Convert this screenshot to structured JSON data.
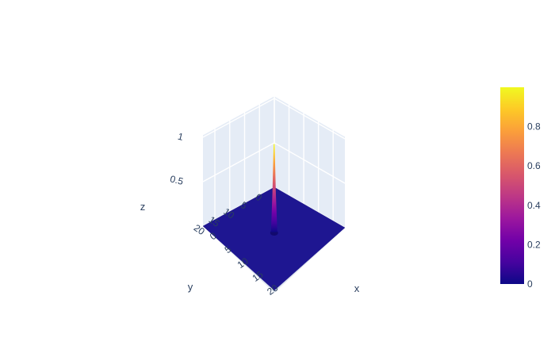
{
  "chart_data": {
    "type": "surface",
    "title": "",
    "colorscale": "plasma",
    "colorscale_stops": [
      "#0d0887",
      "#46039f",
      "#7201a8",
      "#9c179e",
      "#bd3786",
      "#d8576b",
      "#ed7953",
      "#fb9f3a",
      "#fdca26",
      "#f0f921"
    ],
    "surface_fill": "#1e1691",
    "x": {
      "label": "x",
      "range": [
        0,
        24
      ],
      "ticks": [
        0,
        5,
        10,
        15,
        20
      ],
      "tick_labels": [
        "0",
        "5",
        "10",
        "15",
        "20"
      ]
    },
    "y": {
      "label": "y",
      "range": [
        0,
        24
      ],
      "ticks": [
        0,
        5,
        10,
        15,
        20
      ],
      "tick_labels": [
        "0",
        "5",
        "10",
        "15",
        "20"
      ]
    },
    "z": {
      "label": "z",
      "range": [
        0,
        1
      ],
      "ticks": [
        0,
        0.5,
        1
      ],
      "tick_labels": [
        "0",
        "0.5",
        "1"
      ]
    },
    "surface": {
      "description": "single sharp peak",
      "peak": {
        "x": 12,
        "y": 12,
        "z": 1.0
      },
      "baseline_z": 0
    },
    "colorbar": {
      "range": [
        0,
        1
      ],
      "ticks": [
        0,
        0.2,
        0.4,
        0.6,
        0.8
      ],
      "tick_labels": [
        "0",
        "0.2",
        "0.4",
        "0.6",
        "0.8"
      ]
    }
  }
}
